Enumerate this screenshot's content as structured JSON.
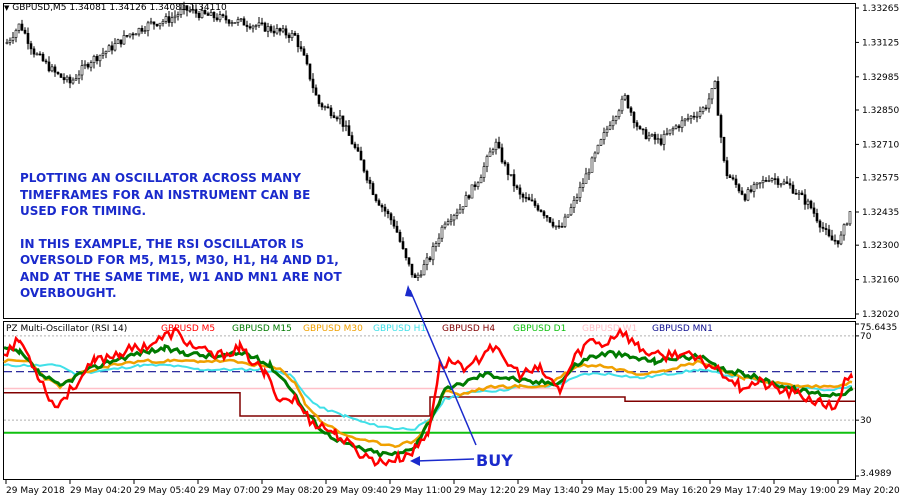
{
  "price_chart": {
    "symbol_header": "GBPUSD,M5",
    "ohlc_header": "1.34081 1.34126 1.34081 1.34110",
    "price_axis": [
      "1.33265",
      "1.33125",
      "1.32985",
      "1.32850",
      "1.32710",
      "1.32575",
      "1.32435",
      "1.32300",
      "1.32160",
      "1.32020"
    ],
    "price_range": [
      1.3202,
      1.33265
    ],
    "annotation": [
      "PLOTTING AN OSCILLATOR ACROSS MANY",
      "TIMEFRAMES FOR AN INSTRUMENT CAN BE",
      "USED FOR TIMING.",
      "",
      "IN THIS EXAMPLE, THE RSI OSCILLATOR IS",
      "OVERSOLD FOR M5, M15, M30, H1, H4 AND D1,",
      "AND AT THE SAME TIME, W1 AND MN1 ARE NOT",
      "OVERBOUGHT."
    ]
  },
  "indicator": {
    "title": "PZ Multi-Oscillator (RSI 14)",
    "axis_labels": [
      "75.6435",
      "70",
      "30",
      "3.4989"
    ],
    "range": [
      3.4989,
      75.6435
    ],
    "levels": [
      70,
      30
    ],
    "legend": [
      {
        "label": "GBPUSD M5",
        "color": "#ff0000"
      },
      {
        "label": "GBPUSD M15",
        "color": "#007a00"
      },
      {
        "label": "GBPUSD M30",
        "color": "#f0a000"
      },
      {
        "label": "GBPUSD H1",
        "color": "#40e0e8"
      },
      {
        "label": "GBPUSD H4",
        "color": "#800000"
      },
      {
        "label": "GBPUSD D1",
        "color": "#10c010"
      },
      {
        "label": "GBPUSD W1",
        "color": "#ffc0c8"
      },
      {
        "label": "GBPUSD MN1",
        "color": "#101090"
      }
    ],
    "buy_label": "BUY"
  },
  "time_axis": [
    "29 May 2018",
    "29 May 04:20",
    "29 May 05:40",
    "29 May 07:00",
    "29 May 08:20",
    "29 May 09:40",
    "29 May 11:00",
    "29 May 12:20",
    "29 May 13:40",
    "29 May 15:00",
    "29 May 16:20",
    "29 May 17:40",
    "29 May 19:00",
    "29 May 20:20"
  ],
  "colors": {
    "annotation": "#1a2acc",
    "candle": "#000000",
    "background": "#ffffff"
  }
}
